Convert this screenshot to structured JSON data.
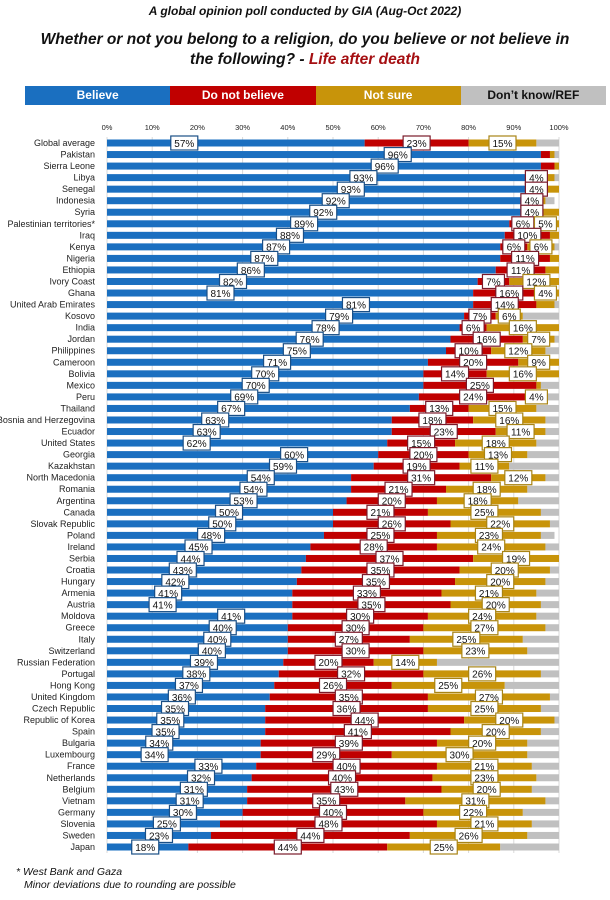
{
  "chart_data": {
    "type": "bar",
    "orientation": "horizontal-stacked-100",
    "subtitle": "A global opinion poll conducted by GIA (Aug-Oct 2022)",
    "title": "Whether or not you belong to a religion, do you believe or not believe in the following? - ",
    "title_highlight": "Life after death",
    "xlim": [
      0,
      100
    ],
    "x_ticks": [
      "0%",
      "10%",
      "20%",
      "30%",
      "40%",
      "50%",
      "60%",
      "70%",
      "80%",
      "90%",
      "100%"
    ],
    "grid": true,
    "legend_position": "top",
    "series_colors": [
      "#1a6fc0",
      "#c00000",
      "#c8940a",
      "#c0c0c0"
    ],
    "series_names": [
      "Believe",
      "Do not believe",
      "Not sure",
      "Don’t know/REF"
    ],
    "legend_text_colors": [
      "#ffffff",
      "#ffffff",
      "#ffffff",
      "#111111"
    ],
    "categories": [
      "Global average",
      "Pakistan",
      "Sierra Leone",
      "Libya",
      "Senegal",
      "Indonesia",
      "Syria",
      "Palestinian territories*",
      "Iraq",
      "Kenya",
      "Nigeria",
      "Ethiopia",
      "Ivory Coast",
      "Ghana",
      "United Arab Emirates",
      "Kosovo",
      "India",
      "Jordan",
      "Philippines",
      "Cameroon",
      "Bolivia",
      "Mexico",
      "Peru",
      "Thailand",
      "Bosnia and Herzegovina",
      "Ecuador",
      "United States",
      "Georgia",
      "Kazakhstan",
      "North Macedonia",
      "Romania",
      "Argentina",
      "Canada",
      "Slovak Republic",
      "Poland",
      "Ireland",
      "Serbia",
      "Croatia",
      "Hungary",
      "Armenia",
      "Austria",
      "Moldova",
      "Greece",
      "Italy",
      "Switzerland",
      "Russian Federation",
      "Portugal",
      "Hong Kong",
      "United Kingdom",
      "Czech Republic",
      "Republic of Korea",
      "Spain",
      "Bulgaria",
      "Luxembourg",
      "France",
      "Netherlands",
      "Belgium",
      "Vietnam",
      "Germany",
      "Slovenia",
      "Sweden",
      "Japan"
    ],
    "series": [
      {
        "name": "Believe",
        "values": [
          57,
          96,
          96,
          93,
          93,
          92,
          92,
          89,
          88,
          87,
          87,
          86,
          82,
          81,
          81,
          79,
          78,
          76,
          75,
          71,
          70,
          70,
          69,
          67,
          63,
          63,
          62,
          60,
          59,
          54,
          54,
          53,
          50,
          50,
          48,
          45,
          44,
          43,
          42,
          41,
          41,
          41,
          40,
          40,
          40,
          39,
          38,
          37,
          36,
          35,
          35,
          35,
          34,
          34,
          33,
          32,
          31,
          31,
          30,
          25,
          23,
          18
        ]
      },
      {
        "name": "Do not believe",
        "values": [
          23,
          2,
          3,
          4,
          4,
          4,
          4,
          6,
          10,
          6,
          11,
          11,
          7,
          16,
          14,
          7,
          6,
          16,
          10,
          20,
          14,
          25,
          24,
          13,
          18,
          23,
          15,
          20,
          19,
          31,
          21,
          20,
          21,
          26,
          25,
          28,
          37,
          35,
          35,
          33,
          35,
          30,
          30,
          27,
          30,
          20,
          32,
          26,
          35,
          36,
          44,
          41,
          39,
          29,
          40,
          40,
          43,
          35,
          40,
          48,
          44,
          44
        ]
      },
      {
        "name": "Not sure",
        "values": [
          15,
          1,
          2,
          2,
          4,
          1,
          4,
          5,
          2,
          6,
          2,
          3,
          12,
          4,
          4,
          6,
          16,
          7,
          12,
          9,
          16,
          1,
          4,
          15,
          16,
          11,
          18,
          13,
          11,
          12,
          18,
          18,
          25,
          22,
          23,
          24,
          19,
          20,
          20,
          21,
          20,
          24,
          27,
          25,
          23,
          14,
          26,
          25,
          27,
          25,
          20,
          20,
          20,
          30,
          21,
          23,
          20,
          31,
          22,
          21,
          26,
          25
        ]
      },
      {
        "name": "Don’t know/REF",
        "values": [
          5,
          1,
          0,
          1,
          0,
          2,
          0,
          0,
          0,
          1,
          0,
          0,
          0,
          0,
          2,
          8,
          0,
          1,
          3,
          0,
          0,
          4,
          3,
          5,
          3,
          3,
          5,
          7,
          11,
          3,
          7,
          9,
          4,
          3,
          3,
          3,
          0,
          2,
          3,
          5,
          4,
          5,
          3,
          8,
          7,
          27,
          4,
          12,
          2,
          4,
          1,
          4,
          7,
          7,
          6,
          5,
          6,
          3,
          8,
          6,
          7,
          13
        ]
      }
    ],
    "data_labels": [
      [
        57,
        23,
        15
      ],
      [
        96
      ],
      [
        96
      ],
      [
        93,
        4
      ],
      [
        93,
        4
      ],
      [
        92,
        4
      ],
      [
        92,
        4
      ],
      [
        89,
        6,
        5
      ],
      [
        88,
        10
      ],
      [
        87,
        6,
        6
      ],
      [
        87,
        11
      ],
      [
        86,
        11
      ],
      [
        82,
        7,
        12
      ],
      [
        81,
        16,
        4
      ],
      [
        81,
        14
      ],
      [
        79,
        7,
        6
      ],
      [
        78,
        6,
        16
      ],
      [
        76,
        16,
        7
      ],
      [
        75,
        10,
        12
      ],
      [
        71,
        20,
        9
      ],
      [
        70,
        14,
        16
      ],
      [
        70,
        25
      ],
      [
        69,
        24,
        4
      ],
      [
        67,
        13,
        15
      ],
      [
        63,
        18,
        16
      ],
      [
        63,
        23,
        11
      ],
      [
        62,
        15,
        18
      ],
      [
        60,
        20,
        13
      ],
      [
        59,
        19,
        11
      ],
      [
        54,
        31,
        12
      ],
      [
        54,
        21,
        18
      ],
      [
        53,
        20,
        18
      ],
      [
        50,
        21,
        25
      ],
      [
        50,
        26,
        22
      ],
      [
        48,
        25,
        23
      ],
      [
        45,
        28,
        24
      ],
      [
        44,
        37,
        19
      ],
      [
        43,
        35,
        20
      ],
      [
        42,
        35,
        20
      ],
      [
        41,
        33,
        21
      ],
      [
        41,
        35,
        20
      ],
      [
        41,
        30,
        24
      ],
      [
        40,
        30,
        27
      ],
      [
        40,
        27,
        25
      ],
      [
        40,
        30,
        23
      ],
      [
        39,
        20,
        14
      ],
      [
        38,
        32,
        26
      ],
      [
        37,
        26,
        25
      ],
      [
        36,
        35,
        27
      ],
      [
        35,
        36,
        25
      ],
      [
        35,
        44,
        20
      ],
      [
        35,
        41,
        20
      ],
      [
        34,
        39,
        20
      ],
      [
        34,
        29,
        30
      ],
      [
        33,
        40,
        21
      ],
      [
        32,
        40,
        23
      ],
      [
        31,
        43,
        20
      ],
      [
        31,
        35,
        31
      ],
      [
        30,
        40,
        22
      ],
      [
        25,
        48,
        21
      ],
      [
        23,
        44,
        26
      ],
      [
        18,
        44,
        25
      ]
    ],
    "footnotes": [
      "* West Bank and Gaza",
      "Minor deviations due to rounding are possible"
    ]
  }
}
